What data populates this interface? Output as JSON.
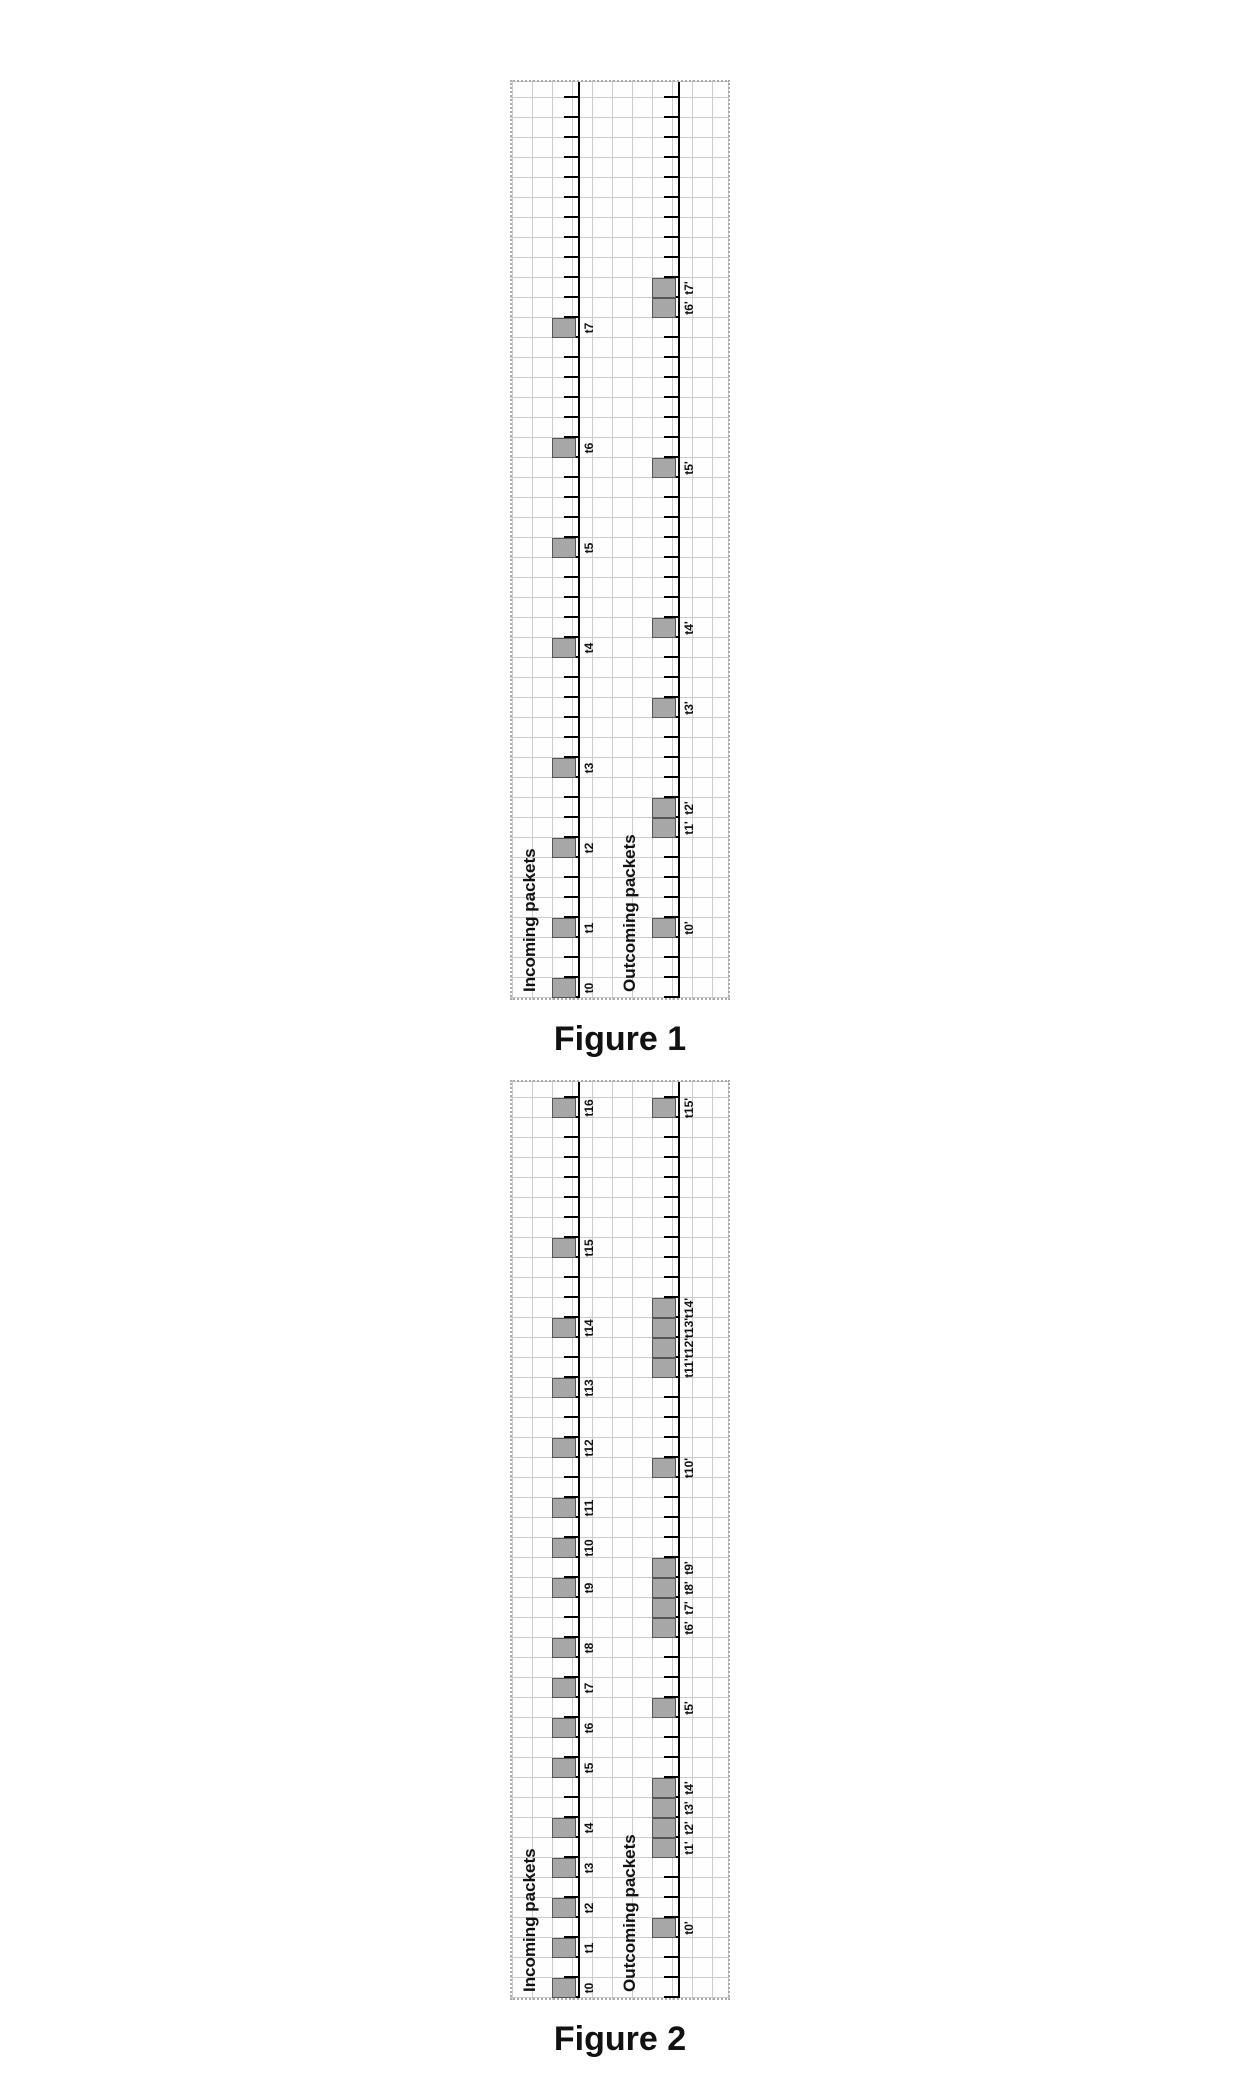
{
  "colors": {
    "grid": "#cccccc",
    "border": "#aaaaaa",
    "axis": "#000000",
    "packet_fill": "#a7a7a7",
    "packet_border": "#555555",
    "text": "#111111",
    "background": "#fefefe"
  },
  "layout": {
    "cell": 20,
    "packet_w": 20,
    "packet_h": 24,
    "tick_h": 14
  },
  "figure1": {
    "caption": "Figure 1",
    "panel": {
      "cells_w": 46,
      "cells_h": 11
    },
    "rows": {
      "incoming": {
        "title": "Incoming packets",
        "title_cell_x": 0.3,
        "title_cell_y": 0.4,
        "axis_cell_y": 3.3,
        "ticks_from": 0,
        "ticks_to": 45,
        "packets": [
          {
            "cell": 0,
            "label": "t0"
          },
          {
            "cell": 3,
            "label": "t1"
          },
          {
            "cell": 7,
            "label": "t2"
          },
          {
            "cell": 11,
            "label": "t3"
          },
          {
            "cell": 17,
            "label": "t4"
          },
          {
            "cell": 22,
            "label": "t5"
          },
          {
            "cell": 27,
            "label": "t6"
          },
          {
            "cell": 33,
            "label": "t7"
          }
        ]
      },
      "outgoing": {
        "title": "Outcoming packets",
        "title_cell_x": 0.3,
        "title_cell_y": 5.4,
        "axis_cell_y": 8.3,
        "ticks_from": 0,
        "ticks_to": 45,
        "packets": [
          {
            "cell": 3,
            "label": "t0'"
          },
          {
            "cell": 8,
            "label": "t1'"
          },
          {
            "cell": 9,
            "label": "t2'"
          },
          {
            "cell": 14,
            "label": "t3'"
          },
          {
            "cell": 18,
            "label": "t4'"
          },
          {
            "cell": 26,
            "label": "t5'"
          },
          {
            "cell": 34,
            "label": "t6'"
          },
          {
            "cell": 35,
            "label": "t7'"
          }
        ]
      }
    }
  },
  "figure2": {
    "caption": "Figure 2",
    "panel": {
      "cells_w": 46,
      "cells_h": 11
    },
    "rows": {
      "incoming": {
        "title": "Incoming packets",
        "title_cell_x": 0.3,
        "title_cell_y": 0.4,
        "axis_cell_y": 3.3,
        "ticks_from": 0,
        "ticks_to": 45,
        "packets": [
          {
            "cell": 0,
            "label": "t0"
          },
          {
            "cell": 2,
            "label": "t1"
          },
          {
            "cell": 4,
            "label": "t2"
          },
          {
            "cell": 6,
            "label": "t3"
          },
          {
            "cell": 8,
            "label": "t4"
          },
          {
            "cell": 11,
            "label": "t5"
          },
          {
            "cell": 13,
            "label": "t6"
          },
          {
            "cell": 15,
            "label": "t7"
          },
          {
            "cell": 17,
            "label": "t8"
          },
          {
            "cell": 20,
            "label": "t9"
          },
          {
            "cell": 22,
            "label": "t10"
          },
          {
            "cell": 24,
            "label": "t11"
          },
          {
            "cell": 27,
            "label": "t12"
          },
          {
            "cell": 30,
            "label": "t13"
          },
          {
            "cell": 33,
            "label": "t14"
          },
          {
            "cell": 37,
            "label": "t15"
          },
          {
            "cell": 44,
            "label": "t16"
          }
        ]
      },
      "outgoing": {
        "title": "Outcoming packets",
        "title_cell_x": 0.3,
        "title_cell_y": 5.4,
        "axis_cell_y": 8.3,
        "ticks_from": 0,
        "ticks_to": 45,
        "packets": [
          {
            "cell": 3,
            "label": "t0'"
          },
          {
            "cell": 7,
            "label": "t1'"
          },
          {
            "cell": 8,
            "label": "t2'"
          },
          {
            "cell": 9,
            "label": "t3'"
          },
          {
            "cell": 10,
            "label": "t4'"
          },
          {
            "cell": 14,
            "label": "t5'"
          },
          {
            "cell": 18,
            "label": "t6'"
          },
          {
            "cell": 19,
            "label": "t7'"
          },
          {
            "cell": 20,
            "label": "t8'"
          },
          {
            "cell": 21,
            "label": "t9'"
          },
          {
            "cell": 26,
            "label": "t10'"
          },
          {
            "cell": 31,
            "label": "t11'"
          },
          {
            "cell": 32,
            "label": "t12'"
          },
          {
            "cell": 33,
            "label": "t13'"
          },
          {
            "cell": 34,
            "label": "t14'"
          },
          {
            "cell": 44,
            "label": "t15'"
          }
        ]
      }
    }
  }
}
